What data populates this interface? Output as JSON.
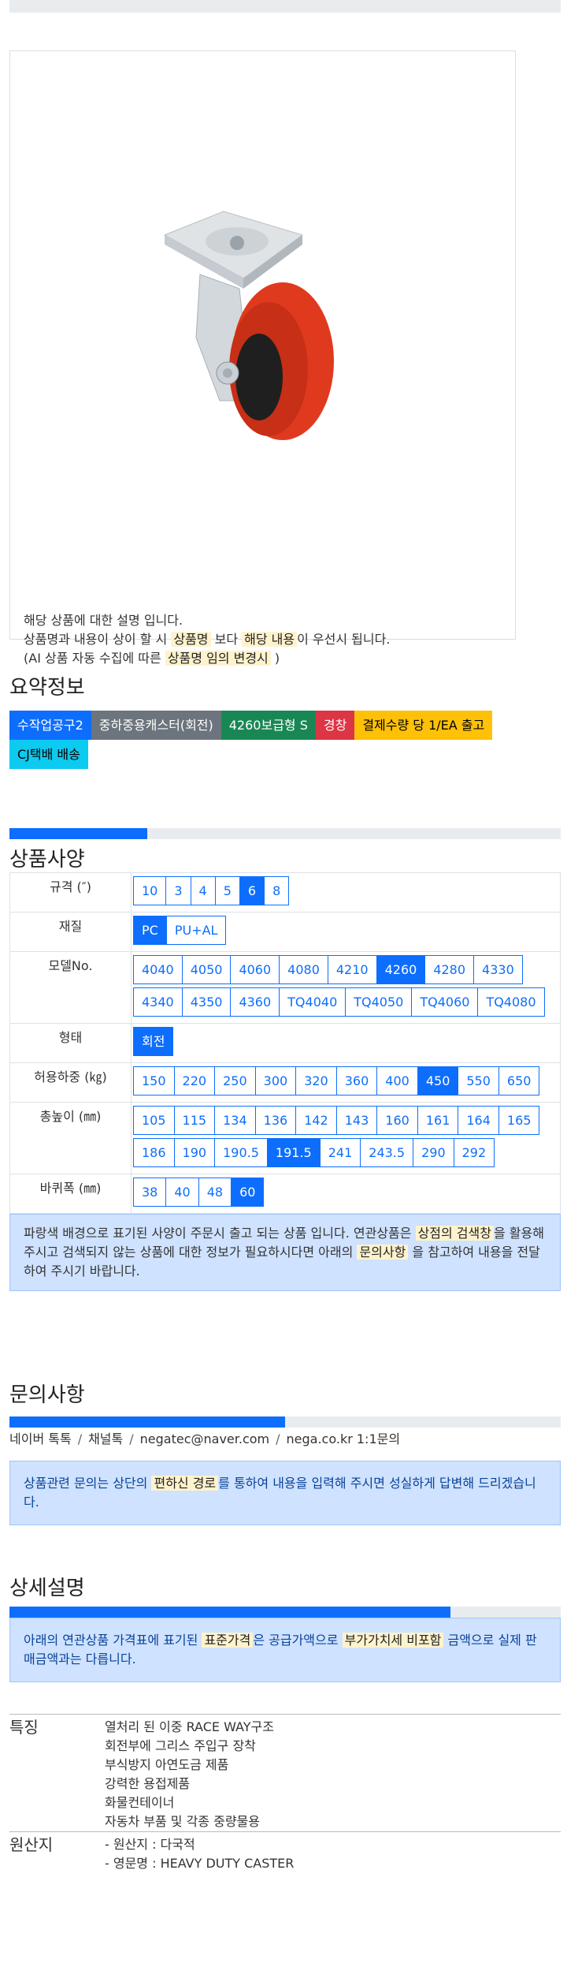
{
  "product_image": {
    "alt": "swivel caster with red wheel"
  },
  "description": {
    "line1": "해당 상품에 대한 설명 입니다.",
    "line2_pre": "상품명과 내용이 상이 할 시 ",
    "line2_hl1": "상품명",
    "line2_mid": " 보다 ",
    "line2_hl2": "해당 내용",
    "line2_post": "이 우선시 됩니다.",
    "line3_pre": "(AI 상품 자동 수집에 따른 ",
    "line3_hl": "상품명 임의 변경시",
    "line3_post": " )"
  },
  "summary": {
    "title": "요약정보",
    "badges": [
      {
        "label": "수작업공구2",
        "color": "#0d6efd",
        "text": "#ffffff"
      },
      {
        "label": "중하중용캐스터(회전)",
        "color": "#6c757d",
        "text": "#ffffff"
      },
      {
        "label": "4260보급형 S",
        "color": "#198754",
        "text": "#ffffff"
      },
      {
        "label": "경창",
        "color": "#dc3545",
        "text": "#ffffff"
      },
      {
        "label": "결제수량 당 1/EA 출고",
        "color": "#ffc107",
        "text": "#000000"
      },
      {
        "label": "CJ택배 배송",
        "color": "#0dcaf0",
        "text": "#000000"
      }
    ]
  },
  "specs": {
    "title": "상품사양",
    "progress_percent": 25,
    "rows": [
      {
        "label": "규격 (″)",
        "options": [
          "10",
          "3",
          "4",
          "5",
          "6",
          "8"
        ],
        "selected": "6"
      },
      {
        "label": "재질",
        "options": [
          "PC",
          "PU+AL"
        ],
        "selected": "PC"
      },
      {
        "label": "모델No.",
        "options": [
          "4040",
          "4050",
          "4060",
          "4080",
          "4210",
          "4260",
          "4280",
          "4330",
          "4340",
          "4350",
          "4360",
          "TQ4040",
          "TQ4050",
          "TQ4060",
          "TQ4080"
        ],
        "selected": "4260"
      },
      {
        "label": "형태",
        "options": [
          "회전"
        ],
        "selected": "회전"
      },
      {
        "label": "허용하중 (㎏)",
        "options": [
          "150",
          "220",
          "250",
          "300",
          "320",
          "360",
          "400",
          "450",
          "550",
          "650"
        ],
        "selected": "450"
      },
      {
        "label": "총높이 (㎜)",
        "options": [
          "105",
          "115",
          "134",
          "136",
          "142",
          "143",
          "160",
          "161",
          "164",
          "165",
          "186",
          "190",
          "190.5",
          "191.5",
          "241",
          "243.5",
          "290",
          "292"
        ],
        "selected": "191.5"
      },
      {
        "label": "바퀴폭 (㎜)",
        "options": [
          "38",
          "40",
          "48",
          "60"
        ],
        "selected": "60"
      }
    ],
    "notice": {
      "pre": "파랑색 배경으로 표기된 사양이 주문시 출고 되는 상품 입니다. 연관상품은 ",
      "hl1": "상점의 검색창",
      "mid": "을 활용해 주시고 검색되지 않는 상품에 대한 정보가 필요하시다면 아래의 ",
      "hl2": "문의사항",
      "post": " 을 참고하여 내용을 전달하여 주시기 바랍니다."
    }
  },
  "inquiry": {
    "title": "문의사항",
    "progress_percent": 50,
    "links": [
      "네이버 톡톡",
      "채널톡",
      "negatec@naver.com",
      "nega.co.kr 1:1문의"
    ],
    "separator": "/",
    "notice": {
      "pre": "상품관련 문의는 상단의 ",
      "hl": "편하신 경로",
      "post": "를 통하여 내용을 입력해 주시면 성실하게 답변해 드리겠습니다."
    }
  },
  "detail": {
    "title": "상세설명",
    "progress_percent": 80,
    "notice": {
      "pre": "아래의 연관상품 가격표에 표기된 ",
      "hl1": "표준가격",
      "mid": "은 공급가액으로 ",
      "hl2": "부가가치세 비포함",
      "post": " 금액으로 실제 판매금액과는 다릅니다."
    },
    "rows": [
      {
        "label": "특징",
        "values": [
          "열처리 된 이중 RACE WAY구조",
          "회전부에 그리스 주입구 장착",
          "부식방지 아연도금 제품",
          "강력한 용접제품",
          "화물컨테이너",
          "자동차 부품 및 각종 중량물용"
        ]
      },
      {
        "label": "원산지",
        "values": [
          "- 원산지 : 다국적",
          "- 영문명 : HEAVY DUTY CASTER"
        ]
      }
    ]
  }
}
